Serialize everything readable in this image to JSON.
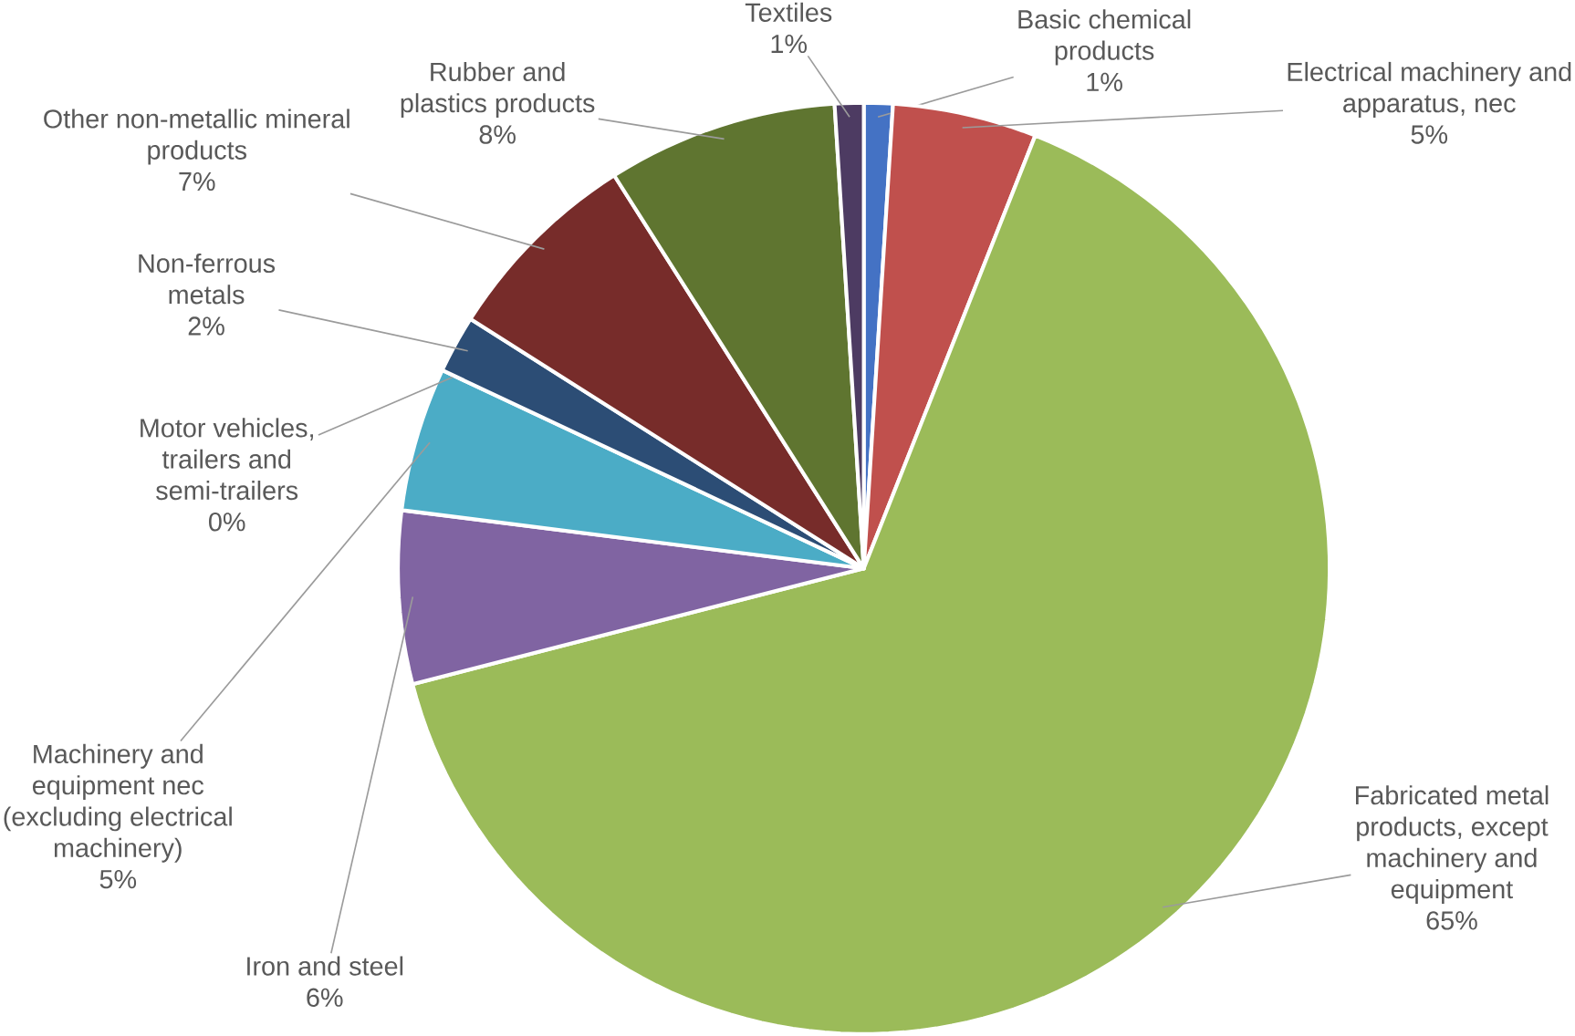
{
  "chart_data": {
    "type": "pie",
    "categories": [
      "Basic chemical products",
      "Electrical machinery and apparatus, nec",
      "Fabricated metal products, except machinery and equipment",
      "Iron and steel",
      "Machinery and equipment nec (excluding electrical machinery)",
      "Motor vehicles, trailers and semi-trailers",
      "Non-ferrous metals",
      "Other non-metallic mineral products",
      "Rubber and plastics products",
      "Textiles"
    ],
    "values": [
      1,
      5,
      65,
      6,
      5,
      0,
      2,
      7,
      8,
      1
    ],
    "value_labels": [
      "1%",
      "5%",
      "65%",
      "6%",
      "5%",
      "0%",
      "2%",
      "7%",
      "8%",
      "1%"
    ],
    "colors": [
      "#4472c4",
      "#c0504d",
      "#9bbb59",
      "#8064a2",
      "#4bacc6",
      "#f79646",
      "#2c4d75",
      "#772c2a",
      "#5f7530",
      "#4d3b62"
    ]
  }
}
